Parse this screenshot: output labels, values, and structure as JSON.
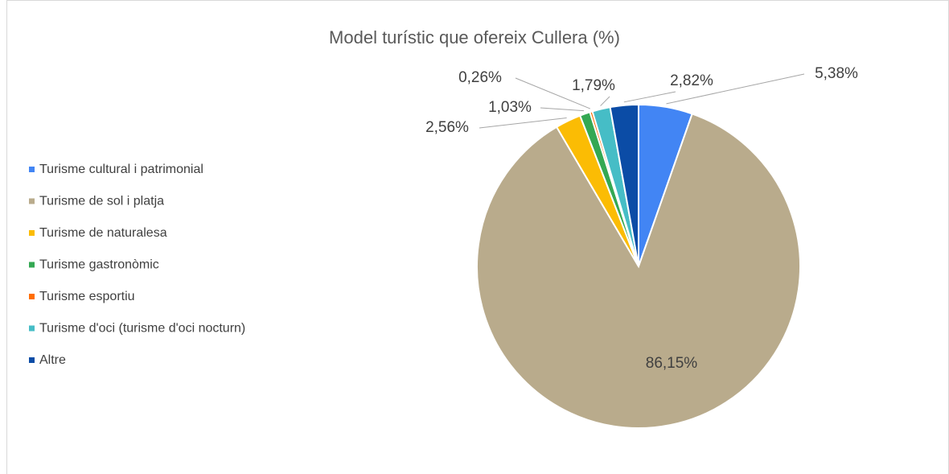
{
  "chart_data": {
    "type": "pie",
    "title": "Model turístic que ofereix Cullera (%)",
    "categories": [
      "Turisme cultural i patrimonial",
      "Turisme de sol i platja",
      "Turisme de naturalesa",
      "Turisme gastronòmic",
      "Turisme esportiu",
      "Turisme d'oci (turisme d'oci nocturn)",
      "Altre"
    ],
    "values": [
      5.38,
      86.15,
      2.56,
      1.03,
      0.26,
      1.79,
      2.82
    ],
    "value_labels": [
      "5,38%",
      "86,15%",
      "2,56%",
      "1,03%",
      "0,26%",
      "1,79%",
      "2,82%"
    ],
    "colors": [
      "#4285f4",
      "#b9ab8c",
      "#fbbc04",
      "#34a853",
      "#ff6d01",
      "#46bdc6",
      "#0b4ca6"
    ],
    "legend": "left"
  }
}
